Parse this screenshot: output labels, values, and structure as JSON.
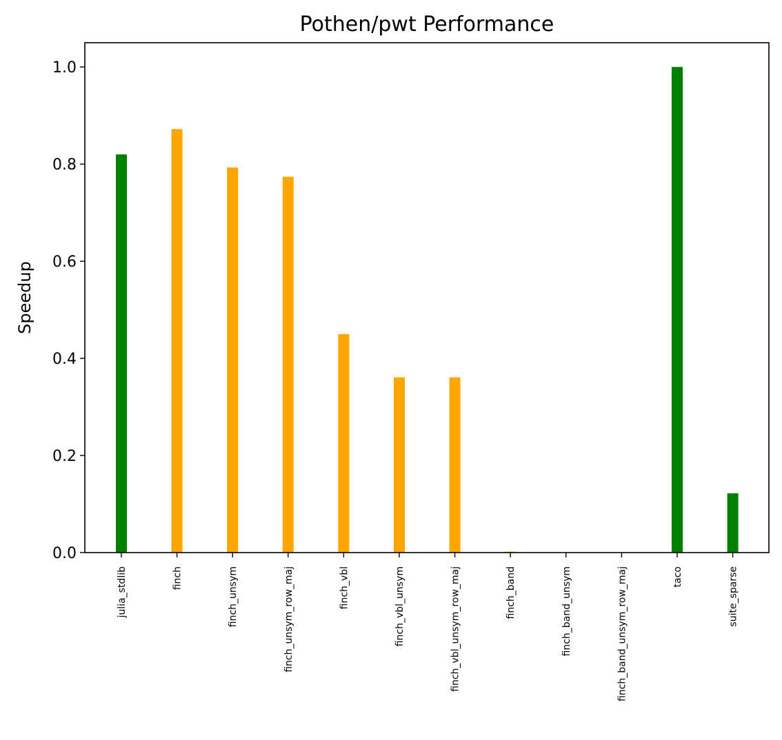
{
  "chart_data": {
    "type": "bar",
    "title": "Pothen/pwt Performance",
    "xlabel": "",
    "ylabel": "Speedup",
    "ylim": [
      0,
      1.05
    ],
    "yticks": [
      0.0,
      0.2,
      0.4,
      0.6,
      0.8,
      1.0
    ],
    "ytick_labels": [
      "0.0",
      "0.2",
      "0.4",
      "0.6",
      "0.8",
      "1.0"
    ],
    "grid": false,
    "categories": [
      "julia_stdlib",
      "finch",
      "finch_unsym",
      "finch_unsym_row_maj",
      "finch_vbl",
      "finch_vbl_unsym",
      "finch_vbl_unsym_row_maj",
      "finch_band",
      "finch_band_unsym",
      "finch_band_unsym_row_maj",
      "taco",
      "suite_sparse"
    ],
    "values": [
      0.82,
      0.872,
      0.793,
      0.774,
      0.45,
      0.361,
      0.361,
      0.002,
      0.0,
      0.0,
      1.0,
      0.122
    ],
    "colors": [
      "#008000",
      "#FFA500",
      "#FFA500",
      "#FFA500",
      "#FFA500",
      "#FFA500",
      "#FFA500",
      "#FFA500",
      "#FFA500",
      "#FFA500",
      "#008000",
      "#008000"
    ]
  }
}
